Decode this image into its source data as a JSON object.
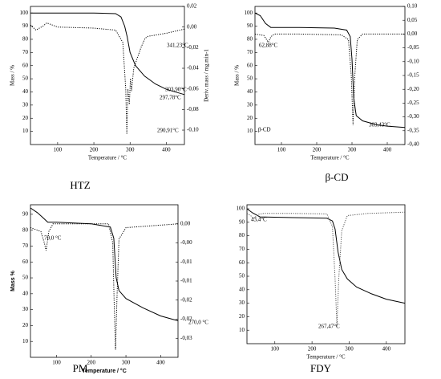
{
  "chart_data": [
    {
      "type": "line",
      "caption": "HTZ",
      "xlabel": "Temperature / °C",
      "ylabel": "Mass / %",
      "y2label": "Deriv. mass / mg.min-1",
      "annotations": [
        "290,91°C",
        "297,78°C",
        "303,90°C",
        "341,23°C"
      ],
      "xlim": [
        25,
        450
      ],
      "xticks": [
        100,
        200,
        300,
        400
      ],
      "ylim": [
        0,
        105
      ],
      "yticks": [
        10,
        20,
        30,
        40,
        50,
        60,
        70,
        80,
        90,
        100
      ],
      "y2lim": [
        -0.114,
        0.02
      ],
      "y2ticks": [
        {
          "value": 0.02,
          "label": "0,02"
        },
        {
          "value": 0,
          "label": "0,00"
        },
        {
          "value": -0.02,
          "label": "-0,02"
        },
        {
          "value": -0.04,
          "label": "-0,04"
        },
        {
          "value": -0.06,
          "label": "-0,06"
        },
        {
          "value": -0.08,
          "label": "-0,08"
        },
        {
          "value": -0.1,
          "label": "-0,10"
        }
      ],
      "series": [
        {
          "style": "solid",
          "color": "#000",
          "x": [
            25,
            100,
            200,
            260,
            275,
            285,
            292,
            300,
            315,
            340,
            370,
            400,
            450
          ],
          "values": [
            100,
            100,
            100,
            99.5,
            97,
            90,
            82,
            70,
            60,
            52,
            46,
            42,
            38
          ]
        },
        {
          "style": "dotted",
          "color": "#000",
          "axis": "y2",
          "x": [
            25,
            40,
            60,
            70,
            100,
            200,
            260,
            280,
            288,
            291,
            294,
            298,
            301,
            304,
            310,
            330,
            341,
            350,
            400,
            450
          ],
          "values": [
            0.002,
            -0.003,
            0.001,
            0.004,
            0.0,
            -0.001,
            -0.003,
            -0.015,
            -0.06,
            -0.104,
            -0.06,
            -0.075,
            -0.05,
            -0.062,
            -0.04,
            -0.02,
            -0.011,
            -0.009,
            -0.006,
            -0.002
          ]
        }
      ]
    },
    {
      "type": "line",
      "caption": "β-CD",
      "label": "β-CD",
      "xlabel": "Temperature / °C",
      "ylabel": "Mass / %",
      "annotations": [
        "62,88°C",
        "303,43°C"
      ],
      "xlim": [
        25,
        450
      ],
      "xticks": [
        100,
        200,
        300,
        400
      ],
      "ylim": [
        0,
        105
      ],
      "yticks": [
        10,
        20,
        30,
        40,
        50,
        60,
        70,
        80,
        90,
        100
      ],
      "y2lim": [
        -0.4,
        0.1
      ],
      "y2ticks": [
        {
          "value": 0.1,
          "label": "0,10"
        },
        {
          "value": 0.05,
          "label": "0,05"
        },
        {
          "value": 0,
          "label": "0,00"
        },
        {
          "value": -0.05,
          "label": "-0,05"
        },
        {
          "value": -0.1,
          "label": "-0,10"
        },
        {
          "value": -0.15,
          "label": "-0,15"
        },
        {
          "value": -0.2,
          "label": "-0,20"
        },
        {
          "value": -0.25,
          "label": "-0,25"
        },
        {
          "value": -0.3,
          "label": "-0,30"
        },
        {
          "value": -0.35,
          "label": "-0,35"
        },
        {
          "value": -0.4,
          "label": "-0,40"
        }
      ],
      "series": [
        {
          "style": "solid",
          "color": "#000",
          "x": [
            25,
            40,
            55,
            70,
            150,
            250,
            285,
            295,
            300,
            305,
            312,
            330,
            370,
            400,
            450
          ],
          "values": [
            100,
            98,
            92,
            89,
            89,
            88.5,
            87,
            82,
            65,
            35,
            22,
            18,
            15,
            14,
            13
          ]
        },
        {
          "style": "dotted",
          "color": "#000",
          "axis": "y2",
          "x": [
            25,
            50,
            58,
            63,
            70,
            80,
            150,
            270,
            290,
            298,
            303,
            308,
            315,
            330,
            450
          ],
          "values": [
            0.0,
            -0.005,
            -0.02,
            -0.03,
            -0.01,
            0.0,
            0.0,
            -0.003,
            -0.02,
            -0.15,
            -0.33,
            -0.15,
            -0.02,
            0.0,
            0.0
          ]
        }
      ]
    },
    {
      "type": "line",
      "caption": "PM",
      "xlabel": "Temperature / °C",
      "ylabel": "Mass %",
      "bold_labels": true,
      "annotations": [
        "70,0 °C",
        "270,0 °C"
      ],
      "xlim": [
        25,
        450
      ],
      "xticks": [
        100,
        200,
        300,
        400
      ],
      "ylim": [
        0,
        96
      ],
      "yticks": [
        10,
        20,
        30,
        40,
        50,
        60,
        70,
        80,
        90
      ],
      "y2lim": [
        -0.035,
        0.005
      ],
      "y2ticks": [
        {
          "value": 0,
          "label": "0,00"
        },
        {
          "value": -0.005,
          "label": "-0,00"
        },
        {
          "value": -0.01,
          "label": "-0,01"
        },
        {
          "value": -0.015,
          "label": "-0,01"
        },
        {
          "value": -0.02,
          "label": "-0,02"
        },
        {
          "value": -0.025,
          "label": "-0,02"
        },
        {
          "value": -0.03,
          "label": "-0,03"
        }
      ],
      "series": [
        {
          "style": "solid",
          "color": "#000",
          "x": [
            25,
            45,
            60,
            75,
            100,
            200,
            255,
            265,
            272,
            280,
            300,
            350,
            400,
            450
          ],
          "values": [
            94,
            91,
            88,
            85,
            85,
            84,
            82,
            75,
            50,
            42,
            37,
            31,
            26,
            23
          ]
        },
        {
          "style": "dotted",
          "color": "#000",
          "axis": "y2",
          "x": [
            25,
            55,
            65,
            70,
            78,
            90,
            150,
            250,
            262,
            266,
            270,
            274,
            280,
            300,
            450
          ],
          "values": [
            -0.001,
            -0.002,
            -0.005,
            -0.007,
            -0.002,
            0.0,
            0.0,
            0.0,
            -0.005,
            -0.02,
            -0.033,
            -0.02,
            -0.004,
            -0.001,
            0.0
          ]
        }
      ]
    },
    {
      "type": "line",
      "caption": "FDY",
      "xlabel": "Temperature / °C",
      "annotations": [
        "43,4°C",
        "267,47°C"
      ],
      "xlim": [
        25,
        450
      ],
      "xticks": [
        100,
        200,
        300,
        400
      ],
      "ylim": [
        0,
        103
      ],
      "yticks": [
        10,
        20,
        30,
        40,
        50,
        60,
        70,
        80,
        90,
        100
      ],
      "y2lim": [
        -0.3,
        0.02
      ],
      "series": [
        {
          "style": "solid",
          "color": "#000",
          "x": [
            25,
            40,
            60,
            150,
            240,
            255,
            262,
            270,
            280,
            295,
            320,
            360,
            400,
            450
          ],
          "values": [
            100,
            97,
            94,
            93.5,
            93,
            91,
            85,
            68,
            55,
            48,
            42,
            37,
            33,
            30
          ]
        },
        {
          "style": "dotted",
          "color": "#555",
          "axis": "y2",
          "x": [
            25,
            35,
            43,
            55,
            70,
            150,
            240,
            255,
            262,
            267,
            272,
            280,
            295,
            350,
            450
          ],
          "values": [
            0.0,
            -0.005,
            -0.012,
            -0.002,
            0.0,
            0.0,
            -0.001,
            -0.03,
            -0.15,
            -0.26,
            -0.15,
            -0.04,
            -0.005,
            0.0,
            0.003
          ]
        }
      ]
    }
  ]
}
